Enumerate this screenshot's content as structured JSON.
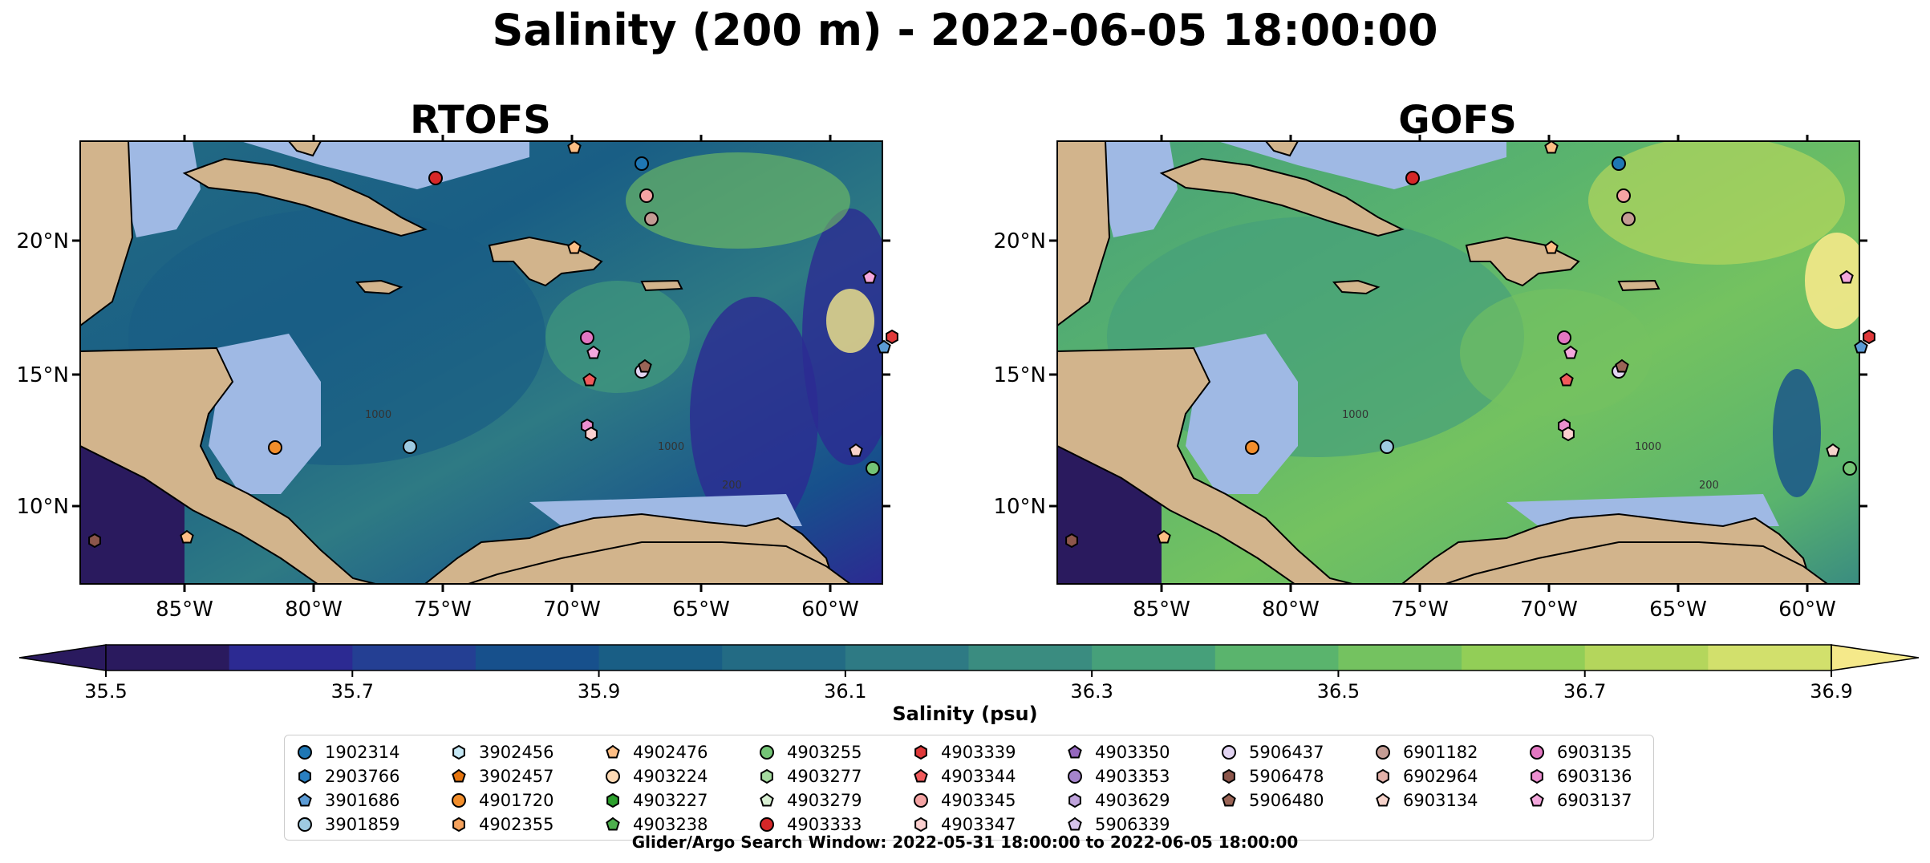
{
  "title": "Salinity (200 m) - 2022-06-05 18:00:00",
  "panels": [
    {
      "title": "RTOFS",
      "palette": "rtofs"
    },
    {
      "title": "GOFS",
      "palette": "gofs"
    }
  ],
  "map": {
    "lon_ticks": [
      "85°W",
      "80°W",
      "75°W",
      "70°W",
      "65°W",
      "60°W"
    ],
    "lat_ticks": [
      "20°N",
      "15°N",
      "10°N"
    ],
    "contour_labels": [
      "1000",
      "1000",
      "200"
    ],
    "land_color": "#d2b48c",
    "shelf_color": "#9fb9e4"
  },
  "colorbar": {
    "title": "Salinity (psu)",
    "tick_labels": [
      "35.5",
      "35.7",
      "35.9",
      "36.1",
      "36.3",
      "36.5",
      "36.7",
      "36.9"
    ],
    "colors": [
      "#2a1a5e",
      "#2c2a92",
      "#243f93",
      "#17508c",
      "#195e85",
      "#236b84",
      "#2e7a84",
      "#3a8c80",
      "#46a07a",
      "#5ab46d",
      "#74c260",
      "#92ce57",
      "#b4d65c",
      "#d2e06c"
    ],
    "under_color": "#2a1a5e",
    "over_color": "#f5e98a"
  },
  "legend": {
    "columns": [
      [
        {
          "id": "1902314",
          "shape": "circle",
          "color": "#1f77b4"
        },
        {
          "id": "2903766",
          "shape": "hexagon",
          "color": "#2a7fc1"
        },
        {
          "id": "3901686",
          "shape": "pentagon",
          "color": "#5b9bd5"
        },
        {
          "id": "3901859",
          "shape": "circle",
          "color": "#9ecae1"
        }
      ],
      [
        {
          "id": "3902456",
          "shape": "hexagon",
          "color": "#c6e8f5"
        },
        {
          "id": "3902457",
          "shape": "pentagon",
          "color": "#e6750f"
        },
        {
          "id": "4901720",
          "shape": "circle",
          "color": "#f28e2b"
        },
        {
          "id": "4902355",
          "shape": "hexagon",
          "color": "#f5a25d"
        }
      ],
      [
        {
          "id": "4902476",
          "shape": "pentagon",
          "color": "#fdbe85"
        },
        {
          "id": "4903224",
          "shape": "circle",
          "color": "#fdd9b4"
        },
        {
          "id": "4903227",
          "shape": "hexagon",
          "color": "#2ca02c"
        },
        {
          "id": "4903238",
          "shape": "pentagon",
          "color": "#4dae4d"
        }
      ],
      [
        {
          "id": "4903255",
          "shape": "circle",
          "color": "#74c476"
        },
        {
          "id": "4903277",
          "shape": "hexagon",
          "color": "#a6dba0"
        },
        {
          "id": "4903279",
          "shape": "pentagon",
          "color": "#d9f0d3"
        },
        {
          "id": "4903333",
          "shape": "circle",
          "color": "#d62728"
        }
      ],
      [
        {
          "id": "4903339",
          "shape": "hexagon",
          "color": "#e0393a"
        },
        {
          "id": "4903344",
          "shape": "pentagon",
          "color": "#f05a5b"
        },
        {
          "id": "4903345",
          "shape": "circle",
          "color": "#f4a3a3"
        },
        {
          "id": "4903347",
          "shape": "hexagon",
          "color": "#fbd0cf"
        }
      ],
      [
        {
          "id": "4903350",
          "shape": "pentagon",
          "color": "#9467bd"
        },
        {
          "id": "4903353",
          "shape": "circle",
          "color": "#a584cc"
        },
        {
          "id": "4903629",
          "shape": "hexagon",
          "color": "#bfa3dc"
        },
        {
          "id": "5906339",
          "shape": "pentagon",
          "color": "#d5c3ea"
        }
      ],
      [
        {
          "id": "5906437",
          "shape": "circle",
          "color": "#e2d4f2"
        },
        {
          "id": "5906478",
          "shape": "hexagon",
          "color": "#8c564b"
        },
        {
          "id": "5906480",
          "shape": "pentagon",
          "color": "#9a6456"
        }
      ],
      [
        {
          "id": "6901182",
          "shape": "circle",
          "color": "#c49c94"
        },
        {
          "id": "6902964",
          "shape": "hexagon",
          "color": "#e3b1a9"
        },
        {
          "id": "6903134",
          "shape": "pentagon",
          "color": "#f6d3cb"
        }
      ],
      [
        {
          "id": "6903135",
          "shape": "circle",
          "color": "#e377c2"
        },
        {
          "id": "6903136",
          "shape": "hexagon",
          "color": "#ec8fd0"
        },
        {
          "id": "6903137",
          "shape": "pentagon",
          "color": "#f4a8dd"
        }
      ]
    ]
  },
  "search_window": "Glider/Argo Search Window: 2022-05-31 18:00:00 to 2022-06-05 18:00:00"
}
